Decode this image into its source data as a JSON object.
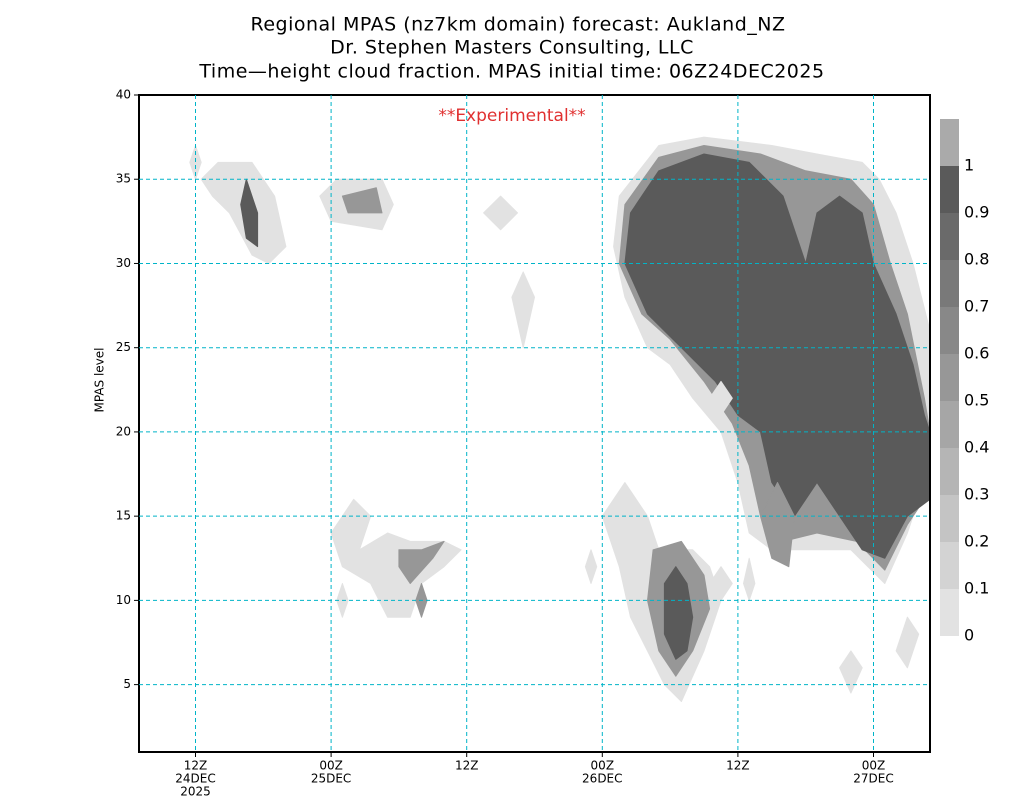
{
  "chart_data": {
    "type": "contour",
    "title": [
      "Regional MPAS (nz7km domain) forecast: Aukland_NZ",
      "Dr. Stephen Masters Consulting, LLC",
      "Time—height cloud fraction.    MPAS initial time: 06Z24DEC2025"
    ],
    "annotation": "**Experimental**",
    "ylabel": "MPAS level",
    "xlim": [
      7,
      77
    ],
    "ylim": [
      1,
      40
    ],
    "xticks": [
      {
        "value": 12,
        "label": [
          "12Z",
          "24DEC",
          "2025"
        ]
      },
      {
        "value": 24,
        "label": [
          "00Z",
          "25DEC"
        ]
      },
      {
        "value": 36,
        "label": [
          "12Z"
        ]
      },
      {
        "value": 48,
        "label": [
          "00Z",
          "26DEC"
        ]
      },
      {
        "value": 60,
        "label": [
          "12Z"
        ]
      },
      {
        "value": 72,
        "label": [
          "00Z",
          "27DEC"
        ]
      }
    ],
    "yticks": [
      5,
      10,
      15,
      20,
      25,
      30,
      35,
      40
    ],
    "grid": true,
    "colorbar": {
      "levels": [
        0,
        0.1,
        0.2,
        0.3,
        0.4,
        0.5,
        0.6,
        0.7,
        0.8,
        0.9,
        1
      ],
      "colors": [
        "#e2e2e2",
        "#d3d3d3",
        "#c4c4c4",
        "#b5b5b5",
        "#a6a6a6",
        "#979797",
        "#888888",
        "#797979",
        "#6a6a6a",
        "#5a5a5a",
        "#aaaaaa"
      ]
    },
    "regions": [
      {
        "level": 0.05,
        "points": [
          [
            49.5,
            34
          ],
          [
            53,
            37
          ],
          [
            57,
            37.5
          ],
          [
            63,
            37
          ],
          [
            67,
            36.5
          ],
          [
            71,
            36
          ],
          [
            72.5,
            35
          ],
          [
            74,
            33
          ],
          [
            75.5,
            30
          ],
          [
            77,
            26
          ],
          [
            77,
            18
          ],
          [
            75,
            14
          ],
          [
            73,
            11
          ],
          [
            70,
            13
          ],
          [
            66,
            13
          ],
          [
            63,
            13
          ],
          [
            61,
            14
          ],
          [
            60,
            17
          ],
          [
            58.5,
            20
          ],
          [
            56,
            22
          ],
          [
            54,
            24
          ],
          [
            52,
            25
          ],
          [
            50,
            28
          ],
          [
            49,
            31
          ]
        ]
      },
      {
        "level": 0.5,
        "points": [
          [
            50,
            33.5
          ],
          [
            53,
            36.3
          ],
          [
            57,
            37
          ],
          [
            62,
            36.5
          ],
          [
            66,
            35.5
          ],
          [
            70,
            35
          ],
          [
            72,
            33.5
          ],
          [
            73.5,
            30
          ],
          [
            75,
            27
          ],
          [
            76.5,
            22
          ],
          [
            77,
            20
          ],
          [
            77,
            16.5
          ],
          [
            75,
            14.5
          ],
          [
            73,
            11.8
          ],
          [
            70.5,
            13.5
          ],
          [
            67,
            14
          ],
          [
            64,
            13.5
          ],
          [
            62,
            15
          ],
          [
            61,
            18
          ],
          [
            59.5,
            20.5
          ],
          [
            57,
            23
          ],
          [
            54,
            25.5
          ],
          [
            51.5,
            27
          ],
          [
            49.5,
            30
          ]
        ]
      },
      {
        "level": 0.9,
        "points": [
          [
            50.5,
            33
          ],
          [
            53,
            35.5
          ],
          [
            57,
            36.5
          ],
          [
            61,
            36
          ],
          [
            64,
            34
          ],
          [
            66,
            30
          ],
          [
            67,
            33
          ],
          [
            69,
            34
          ],
          [
            71,
            33
          ],
          [
            72,
            30
          ],
          [
            74,
            27
          ],
          [
            75.5,
            24
          ],
          [
            76.5,
            21
          ],
          [
            77,
            20
          ],
          [
            77,
            16
          ],
          [
            75,
            15
          ],
          [
            73,
            12.5
          ],
          [
            71,
            13
          ],
          [
            69,
            15
          ],
          [
            67,
            17
          ],
          [
            65,
            15
          ],
          [
            63,
            17
          ],
          [
            62,
            20
          ],
          [
            60,
            21
          ],
          [
            58,
            23
          ],
          [
            55,
            25
          ],
          [
            52,
            27
          ],
          [
            50,
            30
          ]
        ]
      },
      {
        "level": 0.05,
        "points": [
          [
            50,
            17
          ],
          [
            52,
            15
          ],
          [
            53,
            13
          ],
          [
            56,
            13
          ],
          [
            57.5,
            12
          ],
          [
            58.5,
            10
          ],
          [
            57,
            7
          ],
          [
            55,
            4
          ],
          [
            53.5,
            5
          ],
          [
            52,
            7
          ],
          [
            50.5,
            9
          ],
          [
            49.5,
            12
          ],
          [
            48,
            15
          ]
        ]
      },
      {
        "level": 0.5,
        "points": [
          [
            52.5,
            13
          ],
          [
            55,
            13.5
          ],
          [
            57,
            11.5
          ],
          [
            57.5,
            9.5
          ],
          [
            56,
            7
          ],
          [
            54.5,
            5.5
          ],
          [
            53,
            7
          ],
          [
            52,
            10
          ]
        ]
      },
      {
        "level": 0.9,
        "points": [
          [
            53.5,
            11
          ],
          [
            54.5,
            12
          ],
          [
            55.5,
            11
          ],
          [
            56,
            9
          ],
          [
            55.5,
            7
          ],
          [
            54.5,
            6.5
          ],
          [
            53.5,
            8
          ]
        ]
      },
      {
        "level": 0.05,
        "points": [
          [
            12.5,
            35
          ],
          [
            14,
            36
          ],
          [
            17,
            36
          ],
          [
            19,
            34
          ],
          [
            20,
            31
          ],
          [
            18.5,
            30
          ],
          [
            17,
            30.5
          ],
          [
            15,
            33
          ],
          [
            13.5,
            34
          ]
        ]
      },
      {
        "level": 0.9,
        "points": [
          [
            16.5,
            35
          ],
          [
            17.5,
            33
          ],
          [
            17.5,
            31
          ],
          [
            16.5,
            31.5
          ],
          [
            16,
            33.5
          ]
        ]
      },
      {
        "level": 0.05,
        "points": [
          [
            11.5,
            36
          ],
          [
            12,
            37
          ],
          [
            12.5,
            36
          ],
          [
            12,
            35
          ]
        ]
      },
      {
        "level": 0.05,
        "points": [
          [
            23,
            34
          ],
          [
            24.5,
            35
          ],
          [
            28.5,
            35
          ],
          [
            29.5,
            33.5
          ],
          [
            28.5,
            32
          ],
          [
            24,
            32.5
          ]
        ]
      },
      {
        "level": 0.5,
        "points": [
          [
            25,
            34
          ],
          [
            28,
            34.5
          ],
          [
            28.5,
            33
          ],
          [
            25.5,
            33
          ]
        ]
      },
      {
        "level": 0.05,
        "points": [
          [
            37.5,
            33
          ],
          [
            39,
            34
          ],
          [
            40.5,
            33
          ],
          [
            39,
            32
          ]
        ]
      },
      {
        "level": 0.05,
        "points": [
          [
            40,
            28
          ],
          [
            41,
            29.5
          ],
          [
            42,
            28
          ],
          [
            41,
            25
          ]
        ]
      },
      {
        "level": 0.05,
        "points": [
          [
            24,
            14
          ],
          [
            26,
            16
          ],
          [
            27.5,
            15
          ],
          [
            26.5,
            13
          ],
          [
            29,
            14
          ],
          [
            31,
            13.5
          ],
          [
            34,
            13.5
          ],
          [
            35.5,
            13
          ],
          [
            34,
            12
          ],
          [
            32,
            11
          ],
          [
            31,
            9
          ],
          [
            29,
            9
          ],
          [
            27.5,
            11
          ],
          [
            25,
            12
          ]
        ]
      },
      {
        "level": 0.5,
        "points": [
          [
            30,
            13
          ],
          [
            32,
            13
          ],
          [
            34,
            13.5
          ],
          [
            33,
            12.5
          ],
          [
            31,
            11
          ],
          [
            30,
            12
          ]
        ]
      },
      {
        "level": 0.05,
        "points": [
          [
            24.5,
            10
          ],
          [
            25,
            11
          ],
          [
            25.5,
            10
          ],
          [
            25,
            9
          ]
        ]
      },
      {
        "level": 0.5,
        "points": [
          [
            31.5,
            10
          ],
          [
            32,
            11
          ],
          [
            32.5,
            10
          ],
          [
            32,
            9
          ]
        ]
      },
      {
        "level": 0.05,
        "points": [
          [
            46.5,
            12
          ],
          [
            47,
            13
          ],
          [
            47.5,
            12
          ],
          [
            47,
            11
          ]
        ]
      },
      {
        "level": 0.05,
        "points": [
          [
            57.5,
            11
          ],
          [
            58.5,
            12
          ],
          [
            59.5,
            11
          ],
          [
            58.5,
            10
          ]
        ]
      },
      {
        "level": 0.05,
        "points": [
          [
            57.5,
            22
          ],
          [
            58.5,
            23
          ],
          [
            59.5,
            22
          ],
          [
            58.5,
            21
          ]
        ]
      },
      {
        "level": 0.05,
        "points": [
          [
            60.5,
            11
          ],
          [
            61,
            12.5
          ],
          [
            61.5,
            11
          ],
          [
            61,
            10
          ]
        ]
      },
      {
        "level": 0.5,
        "points": [
          [
            62,
            15
          ],
          [
            63.5,
            17
          ],
          [
            65,
            15
          ],
          [
            64.5,
            12
          ],
          [
            63,
            12.5
          ]
        ]
      },
      {
        "level": 0.05,
        "points": [
          [
            69,
            6
          ],
          [
            70,
            7
          ],
          [
            71,
            6
          ],
          [
            70,
            4.5
          ]
        ]
      },
      {
        "level": 0.05,
        "points": [
          [
            74,
            7
          ],
          [
            75,
            9
          ],
          [
            76,
            8
          ],
          [
            75,
            6
          ]
        ]
      }
    ]
  }
}
